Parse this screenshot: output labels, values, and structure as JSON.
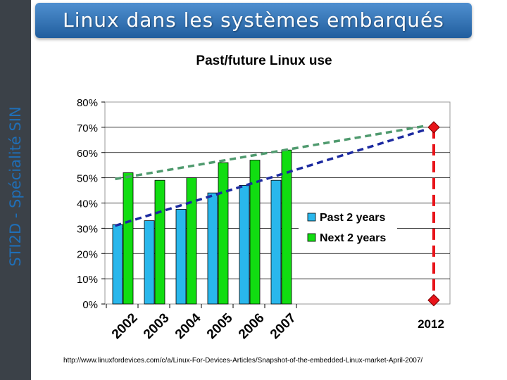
{
  "slide": {
    "banner_title": "Linux dans les systèmes embarqués",
    "side_label": "STI2D - Spécialité SIN",
    "source_url": "http://www.linuxfordevices.com/c/a/Linux-For-Devices-Articles/Snapshot-of-the-embedded-Linux-market-April-2007/"
  },
  "colors": {
    "past": "#29b7ec",
    "next": "#11dd11",
    "trend_past": "#1c2aa0",
    "trend_next": "#4f9a6e",
    "marker": "#e8141a"
  },
  "chart_data": {
    "type": "bar",
    "title": "Past/future Linux use",
    "categories": [
      "2002",
      "2003",
      "2004",
      "2005",
      "2006",
      "2007"
    ],
    "extra_category": "2012",
    "y_ticks": [
      "0%",
      "10%",
      "20%",
      "30%",
      "40%",
      "50%",
      "60%",
      "70%",
      "80%"
    ],
    "ylim": [
      0,
      80
    ],
    "grid": true,
    "legend_position": "right",
    "series": [
      {
        "name": "Past 2 years",
        "values": [
          31.5,
          33,
          37.5,
          44,
          47,
          49
        ]
      },
      {
        "name": "Next 2 years",
        "values": [
          52,
          49,
          50,
          56,
          57,
          61
        ]
      }
    ],
    "trends": [
      {
        "name": "past-trend",
        "from": [
          2002,
          31
        ],
        "to": [
          2012,
          69
        ]
      },
      {
        "name": "next-trend",
        "from": [
          2002,
          49.5
        ],
        "to": [
          2012,
          70.5
        ]
      }
    ],
    "projection": {
      "year": "2012",
      "high": 70,
      "low": 1.5
    }
  }
}
